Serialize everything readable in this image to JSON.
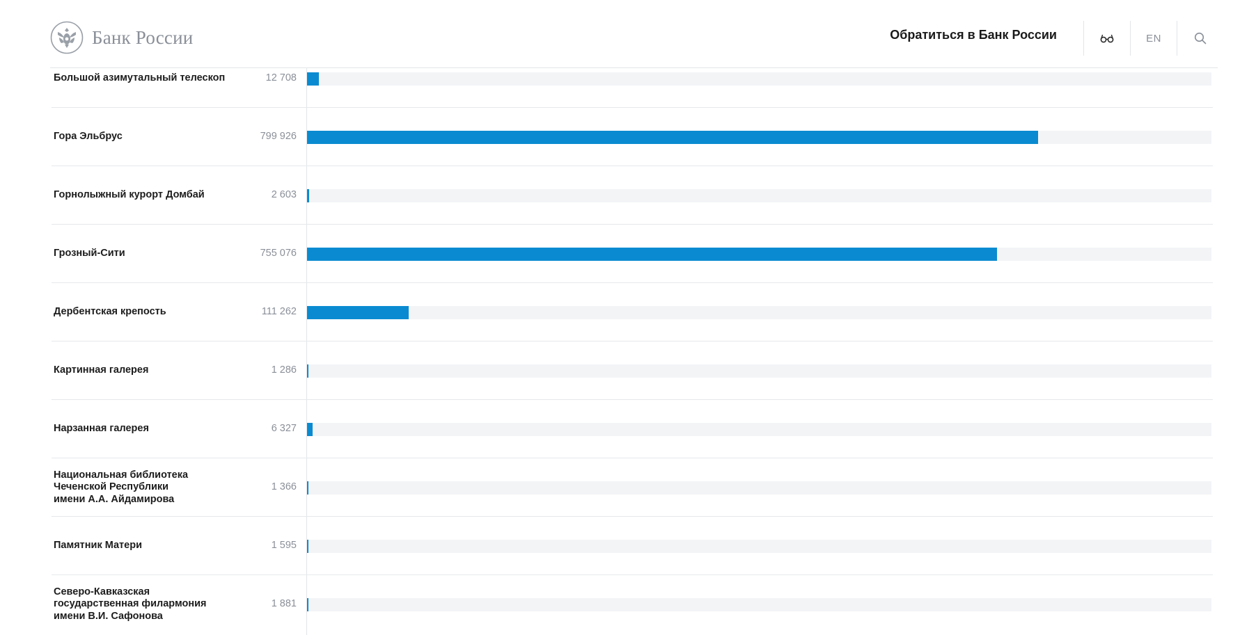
{
  "header": {
    "logo_text": "Банк России",
    "contact_label": "Обратиться в Банк России",
    "accessibility_icon": "glasses-icon",
    "lang_label": "EN",
    "search_icon": "search-icon",
    "logo_icon": "double-headed-eagle-emblem"
  },
  "colors": {
    "bar": "#0a8bd1",
    "track": "#f3f4f6",
    "value_text": "#8a8f98"
  },
  "chart_data": {
    "type": "bar",
    "orientation": "horizontal",
    "xlim": [
      0,
      990000
    ],
    "grid": false,
    "rows": [
      {
        "label": "Большой азимутальный телескоп",
        "value": 12708,
        "value_text": "12 708"
      },
      {
        "label": "Гора Эльбрус",
        "value": 799926,
        "value_text": "799 926"
      },
      {
        "label": "Горнолыжный курорт Домбай",
        "value": 2603,
        "value_text": "2 603"
      },
      {
        "label": "Грозный-Сити",
        "value": 755076,
        "value_text": "755 076"
      },
      {
        "label": "Дербентская крепость",
        "value": 111262,
        "value_text": "111 262"
      },
      {
        "label": "Картинная галерея",
        "value": 1286,
        "value_text": "1 286"
      },
      {
        "label": "Нарзанная галерея",
        "value": 6327,
        "value_text": "6 327"
      },
      {
        "label": "Национальная библиотека\nЧеченской Республики\nимени А.А. Айдамирова",
        "value": 1366,
        "value_text": "1 366"
      },
      {
        "label": "Памятник Матери",
        "value": 1595,
        "value_text": "1 595"
      },
      {
        "label": "Северо-Кавказская\nгосударственная филармония\nимени В.И. Сафонова",
        "value": 1881,
        "value_text": "1 881"
      }
    ]
  }
}
